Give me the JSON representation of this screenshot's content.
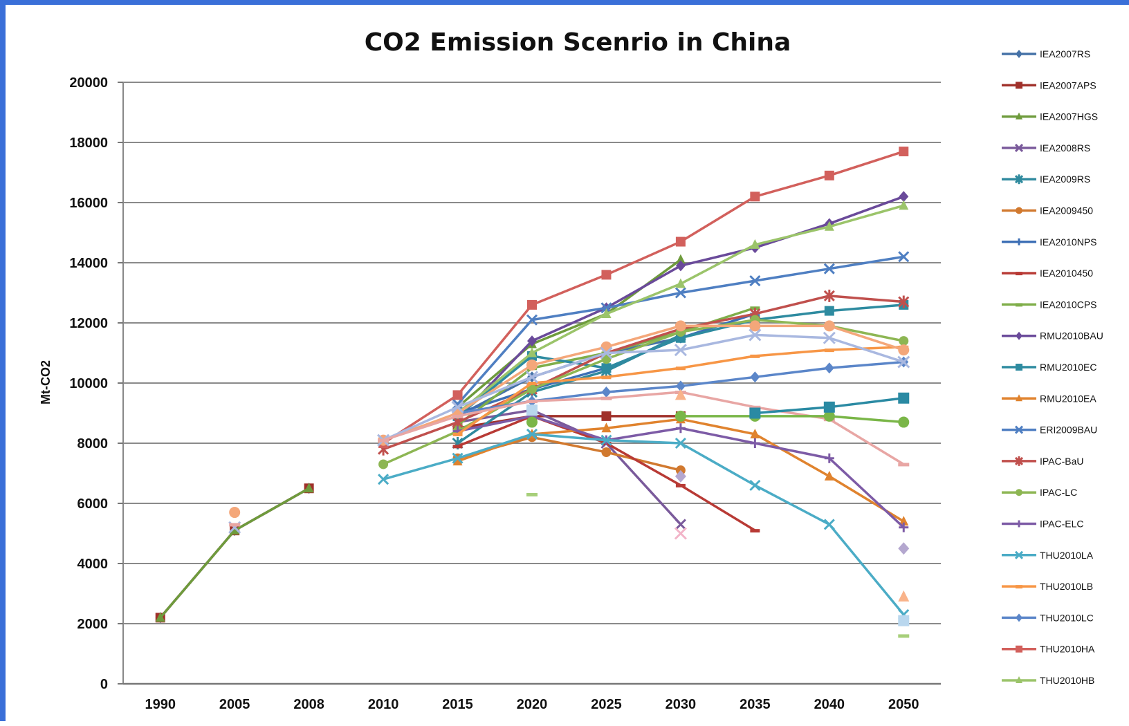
{
  "chart_data": {
    "type": "line",
    "title": "CO2 Emission Scenrio in China",
    "ylabel": "Mt-CO2",
    "xlabel": "",
    "categories": [
      "1990",
      "2005",
      "2008",
      "2010",
      "2015",
      "2020",
      "2025",
      "2030",
      "2035",
      "2040",
      "2050"
    ],
    "yticks": [
      0,
      2000,
      4000,
      6000,
      8000,
      10000,
      12000,
      14000,
      16000,
      18000,
      20000
    ],
    "ylim": [
      0,
      20000
    ],
    "grid": true,
    "legend_position": "right",
    "series": [
      {
        "name": "IEA2007RS",
        "color": "#4572a7",
        "marker": "diamond",
        "values": [
          2200,
          5100,
          6500,
          null,
          8900,
          10200,
          11000,
          11500,
          null,
          null,
          null
        ]
      },
      {
        "name": "IEA2007APS",
        "color": "#a0302a",
        "marker": "square",
        "values": [
          2200,
          5100,
          6500,
          null,
          8500,
          8900,
          8900,
          8900,
          null,
          null,
          null
        ]
      },
      {
        "name": "IEA2007HGS",
        "color": "#6e9b3c",
        "marker": "triangle",
        "values": [
          2200,
          5100,
          6500,
          null,
          9200,
          11300,
          12300,
          14100,
          null,
          null,
          null
        ]
      },
      {
        "name": "IEA2008RS",
        "color": "#7a5a9b",
        "marker": "x",
        "values": [
          null,
          null,
          null,
          null,
          8700,
          9100,
          8000,
          5300,
          null,
          null,
          null
        ]
      },
      {
        "name": "IEA2009RS",
        "color": "#2f8a9e",
        "marker": "star",
        "values": [
          null,
          null,
          null,
          null,
          8000,
          9700,
          10400,
          11600,
          null,
          null,
          null
        ]
      },
      {
        "name": "IEA2009450",
        "color": "#d1792f",
        "marker": "circle",
        "values": [
          null,
          null,
          null,
          null,
          7500,
          8200,
          7700,
          7100,
          null,
          null,
          null
        ]
      },
      {
        "name": "IEA2010NPS",
        "color": "#3d6fb5",
        "marker": "plus",
        "values": [
          null,
          null,
          null,
          null,
          9000,
          9800,
          10500,
          11500,
          12300,
          null,
          null
        ]
      },
      {
        "name": "IEA2010450",
        "color": "#b83a35",
        "marker": "dash",
        "values": [
          null,
          null,
          null,
          null,
          7900,
          8900,
          8000,
          6600,
          5100,
          null,
          null
        ]
      },
      {
        "name": "IEA2010CPS",
        "color": "#7fae4a",
        "marker": "dash",
        "values": [
          null,
          null,
          null,
          null,
          8600,
          10500,
          11000,
          11700,
          12500,
          null,
          null
        ]
      },
      {
        "name": "RMU2010BAU",
        "color": "#6a4a9a",
        "marker": "diamond",
        "values": [
          null,
          null,
          null,
          null,
          8800,
          11400,
          12500,
          13900,
          14500,
          15300,
          16200
        ]
      },
      {
        "name": "RMU2010EC",
        "color": "#2e8ba0",
        "marker": "square",
        "values": [
          null,
          null,
          null,
          null,
          8900,
          10900,
          10500,
          11500,
          12100,
          12400,
          12600
        ]
      },
      {
        "name": "RMU2010EA",
        "color": "#e0832e",
        "marker": "triangle",
        "values": [
          null,
          null,
          null,
          null,
          7400,
          8300,
          8500,
          8800,
          8300,
          6900,
          5400
        ]
      },
      {
        "name": "ERI2009BAU",
        "color": "#4f7fc2",
        "marker": "x",
        "values": [
          null,
          null,
          null,
          null,
          9300,
          12100,
          12500,
          13000,
          13400,
          13800,
          14200
        ]
      },
      {
        "name": "IPAC-BaU",
        "color": "#c0504d",
        "marker": "star",
        "values": [
          null,
          null,
          null,
          7800,
          8700,
          9800,
          11000,
          11800,
          12300,
          12900,
          12700
        ]
      },
      {
        "name": "IPAC-LC",
        "color": "#8db653",
        "marker": "circle",
        "values": [
          null,
          null,
          null,
          7300,
          8400,
          9800,
          10800,
          11700,
          12100,
          11900,
          11400
        ]
      },
      {
        "name": "IPAC-ELC",
        "color": "#7d5ba6",
        "marker": "plus",
        "values": [
          null,
          null,
          null,
          null,
          8400,
          8900,
          8100,
          8500,
          8000,
          7500,
          5200
        ]
      },
      {
        "name": "THU2010LA",
        "color": "#4bacc6",
        "marker": "x",
        "values": [
          null,
          null,
          null,
          6800,
          7500,
          8300,
          8100,
          8000,
          6600,
          5300,
          2300
        ]
      },
      {
        "name": "THU2010LB",
        "color": "#f79646",
        "marker": "dash",
        "values": [
          null,
          null,
          null,
          null,
          8300,
          10000,
          10200,
          10500,
          10900,
          11100,
          11200
        ]
      },
      {
        "name": "THU2010LC",
        "color": "#5b86c9",
        "marker": "diamond",
        "values": [
          null,
          null,
          null,
          null,
          9000,
          9400,
          9700,
          9900,
          10200,
          10500,
          10700
        ]
      },
      {
        "name": "THU2010HA",
        "color": "#d2605c",
        "marker": "square",
        "values": [
          null,
          null,
          null,
          8000,
          9600,
          12600,
          13600,
          14700,
          16200,
          16900,
          17700
        ]
      },
      {
        "name": "THU2010HB",
        "color": "#9bc46a",
        "marker": "triangle",
        "values": [
          null,
          null,
          null,
          null,
          9000,
          11000,
          12300,
          13300,
          14600,
          15200,
          15900
        ]
      },
      {
        "name": "",
        "color": "#f4a77a",
        "marker": "circle",
        "values": [
          null,
          5700,
          null,
          8100,
          9000,
          10600,
          11200,
          11900,
          11900,
          11900,
          11100
        ]
      },
      {
        "name": "",
        "color": "#a9b8e0",
        "marker": "x",
        "values": [
          null,
          5200,
          null,
          8100,
          9200,
          10200,
          11000,
          11100,
          11600,
          11500,
          10700
        ]
      },
      {
        "name": "",
        "color": "#e8a6a4",
        "marker": "dash",
        "values": [
          null,
          5300,
          null,
          8100,
          8900,
          9400,
          9500,
          9700,
          9200,
          8800,
          7300
        ]
      },
      {
        "name": "",
        "color": "#b9d7ee",
        "marker": "square",
        "values": [
          null,
          null,
          null,
          null,
          null,
          9100,
          null,
          null,
          null,
          null,
          2100
        ]
      },
      {
        "name": "",
        "color": "#7ab648",
        "marker": "circle",
        "values": [
          null,
          null,
          null,
          null,
          null,
          8700,
          null,
          8900,
          8900,
          8900,
          8700
        ]
      },
      {
        "name": "",
        "color": "#2a8aa3",
        "marker": "square",
        "values": [
          null,
          null,
          null,
          null,
          null,
          null,
          null,
          null,
          9000,
          9200,
          9500
        ]
      },
      {
        "name": "",
        "color": "#b4a7cf",
        "marker": "diamond",
        "values": [
          null,
          null,
          null,
          null,
          null,
          null,
          null,
          6900,
          null,
          null,
          4500
        ]
      },
      {
        "name": "",
        "color": "#f9b38a",
        "marker": "triangle",
        "values": [
          null,
          null,
          null,
          null,
          null,
          null,
          null,
          9600,
          null,
          null,
          2900
        ]
      },
      {
        "name": "",
        "color": "#f2b4c8",
        "marker": "x",
        "values": [
          null,
          null,
          null,
          null,
          null,
          null,
          null,
          5000,
          null,
          null,
          null
        ]
      },
      {
        "name": "",
        "color": "#a7cf7a",
        "marker": "dash",
        "values": [
          null,
          null,
          null,
          null,
          null,
          6300,
          null,
          null,
          null,
          null,
          1600
        ]
      }
    ]
  }
}
